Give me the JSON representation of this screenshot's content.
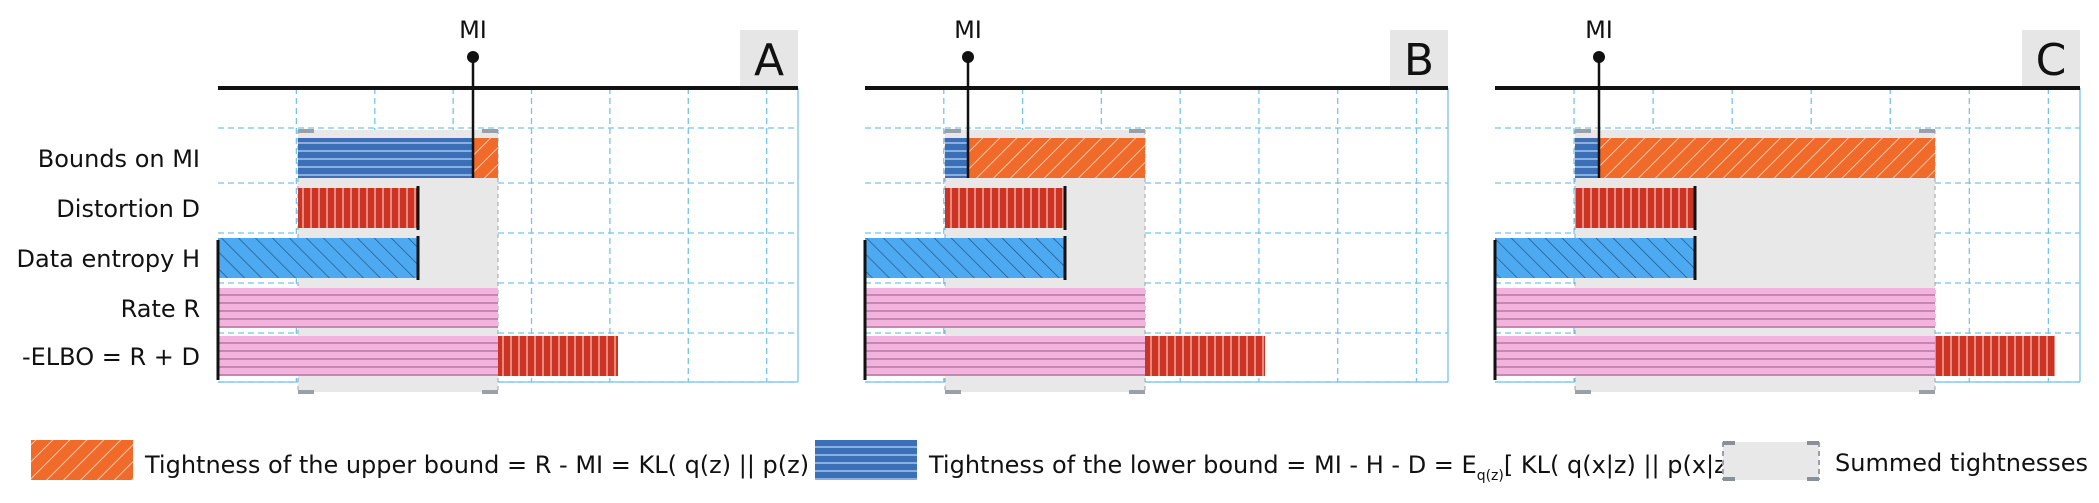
{
  "row_labels": [
    "Bounds on MI",
    "Distortion D",
    "Data entropy H",
    "Rate R",
    "-ELBO = R + D"
  ],
  "mi_label": "MI",
  "panels": [
    {
      "letter": "A",
      "H": 200,
      "D": 120,
      "R": 280,
      "MI": 255
    },
    {
      "letter": "B",
      "H": 200,
      "D": 120,
      "R": 280,
      "MI": 103
    },
    {
      "letter": "C",
      "H": 200,
      "D": 120,
      "R": 440,
      "MI": 104
    }
  ],
  "legend": {
    "upper": "Tightness of the upper bound = R - MI = KL( q(z) || p(z) )",
    "lower_prefix": "Tightness of the lower bound = MI - H - D = E",
    "lower_sub": "q(z)",
    "lower_suffix": "[ KL( q(x|z) || p(x|z) ) ]",
    "summed": "Summed tightnesses"
  },
  "colors": {
    "upper": "#f06a2a",
    "lower": "#3b6fb6",
    "distortion": "#cc3322",
    "entropy": "#4da9f0",
    "rate": "#f2b3dc",
    "summed": "#e8e8e8",
    "grid": "#78c4ec"
  }
}
